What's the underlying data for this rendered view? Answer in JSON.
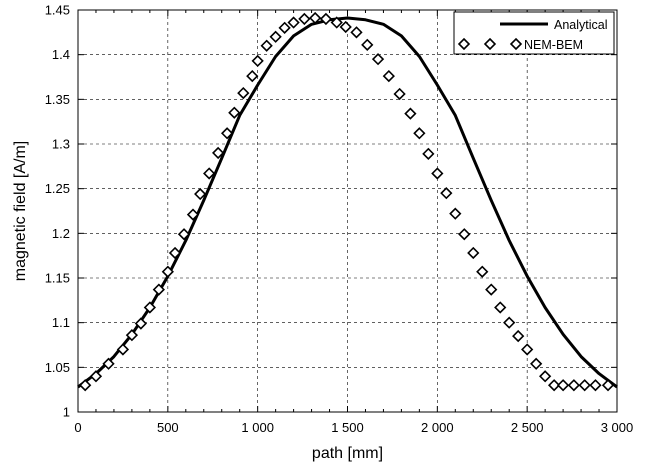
{
  "chart_data": {
    "type": "line",
    "xlabel": "path [mm]",
    "ylabel": "magnetic field [A/m]",
    "xlim": [
      0,
      3000
    ],
    "ylim": [
      1,
      1.45
    ],
    "grid": true,
    "legend_position": "top-right",
    "x_ticks": [
      0,
      500,
      1000,
      1500,
      2000,
      2500,
      3000
    ],
    "x_tick_labels": [
      "0",
      "500",
      "1 000",
      "1 500",
      "2 000",
      "2 500",
      "3 000"
    ],
    "y_ticks": [
      1,
      1.05,
      1.1,
      1.15,
      1.2,
      1.25,
      1.3,
      1.35,
      1.4,
      1.45
    ],
    "y_tick_labels": [
      "1",
      "1.05",
      "1.1",
      "1.15",
      "1.2",
      "1.25",
      "1.3",
      "1.35",
      "1.4",
      "1.45"
    ],
    "series": [
      {
        "name": "Analytical",
        "style": "line",
        "color": "#000000",
        "x": [
          0,
          100,
          200,
          300,
          400,
          500,
          600,
          700,
          800,
          900,
          1000,
          1100,
          1200,
          1300,
          1400,
          1500,
          1600,
          1700,
          1800,
          1900,
          2000,
          2100,
          2200,
          2300,
          2400,
          2500,
          2600,
          2700,
          2800,
          2900,
          3000
        ],
        "y": [
          1.028,
          1.043,
          1.062,
          1.087,
          1.117,
          1.152,
          1.192,
          1.237,
          1.284,
          1.332,
          1.366,
          1.398,
          1.421,
          1.434,
          1.439,
          1.441,
          1.439,
          1.434,
          1.421,
          1.398,
          1.366,
          1.332,
          1.284,
          1.237,
          1.192,
          1.152,
          1.117,
          1.087,
          1.062,
          1.043,
          1.028
        ]
      },
      {
        "name": "NEM-BEM",
        "style": "markers",
        "marker": "diamond",
        "color": "#000000",
        "x": [
          40,
          100,
          170,
          250,
          300,
          350,
          400,
          450,
          500,
          540,
          590,
          640,
          680,
          730,
          780,
          830,
          870,
          920,
          970,
          1000,
          1050,
          1100,
          1150,
          1200,
          1260,
          1320,
          1380,
          1440,
          1490,
          1550,
          1610,
          1670,
          1730,
          1790,
          1850,
          1900,
          1950,
          2000,
          2050,
          2100,
          2150,
          2200,
          2250,
          2300,
          2350,
          2400,
          2450,
          2500,
          2550,
          2600,
          2650,
          2700,
          2760,
          2820,
          2880,
          2950
        ],
        "y": [
          1.03,
          1.04,
          1.054,
          1.07,
          1.086,
          1.099,
          1.117,
          1.137,
          1.157,
          1.178,
          1.199,
          1.221,
          1.244,
          1.267,
          1.29,
          1.312,
          1.335,
          1.357,
          1.376,
          1.393,
          1.41,
          1.42,
          1.43,
          1.436,
          1.44,
          1.441,
          1.44,
          1.436,
          1.431,
          1.425,
          1.411,
          1.395,
          1.376,
          1.356,
          1.334,
          1.312,
          1.289,
          1.267,
          1.245,
          1.222,
          1.199,
          1.178,
          1.157,
          1.137,
          1.117,
          1.1,
          1.085,
          1.07,
          1.054,
          1.04,
          1.03,
          1.03,
          1.03,
          1.03,
          1.03,
          1.03
        ]
      }
    ]
  }
}
